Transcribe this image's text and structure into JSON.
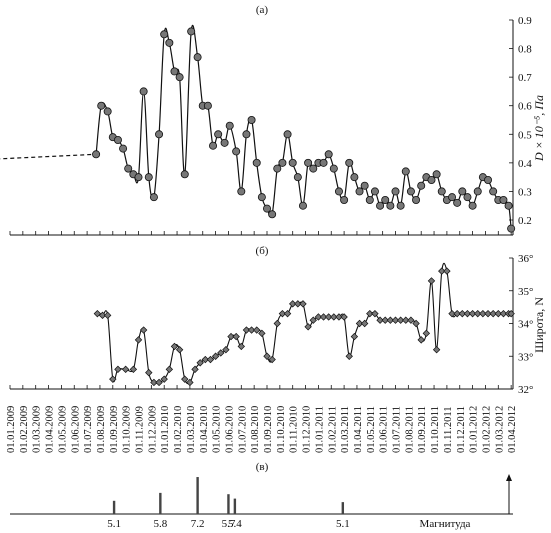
{
  "chart_data": [
    {
      "type": "line",
      "panel_label": "(а)",
      "ylabel": "D × 10⁻⁵, Па",
      "ylim": [
        0.15,
        0.9
      ],
      "yticks": [
        "0.2",
        "0.3",
        "0.4",
        "0.5",
        "0.6",
        "0.7",
        "0.8",
        "0.9"
      ],
      "dashed_lead_in": {
        "x": [
          -2.7,
          6.7
        ],
        "y": [
          0.41,
          0.43
        ]
      },
      "x_month_index": [
        6.7,
        7.1,
        7.6,
        8.0,
        8.4,
        8.8,
        9.2,
        9.6,
        10.0,
        10.4,
        10.8,
        11.2,
        11.6,
        12.0,
        12.4,
        12.8,
        13.2,
        13.6,
        14.1,
        14.6,
        15.0,
        15.4,
        15.8,
        16.2,
        16.7,
        17.1,
        17.6,
        18.0,
        18.4,
        18.8,
        19.2,
        19.6,
        20.0,
        20.4,
        20.8,
        21.2,
        21.6,
        22.0,
        22.4,
        22.8,
        23.2,
        23.6,
        24.0,
        24.4,
        24.8,
        25.2,
        25.6,
        26.0,
        26.4,
        26.8,
        27.2,
        27.6,
        28.0,
        28.4,
        28.8,
        29.2,
        29.6,
        30.0,
        30.4,
        30.8,
        31.2,
        31.6,
        32.0,
        32.4,
        32.8,
        33.2,
        33.6,
        34.0,
        34.4,
        34.8,
        35.2,
        35.6,
        36.0,
        36.4,
        36.8,
        37.2,
        37.6,
        38.0,
        38.4,
        38.8,
        39.0
      ],
      "y": [
        0.43,
        0.6,
        0.58,
        0.49,
        0.48,
        0.45,
        0.38,
        0.36,
        0.35,
        0.65,
        0.35,
        0.28,
        0.5,
        0.85,
        0.82,
        0.72,
        0.7,
        0.36,
        0.86,
        0.77,
        0.6,
        0.6,
        0.46,
        0.5,
        0.47,
        0.53,
        0.44,
        0.3,
        0.5,
        0.55,
        0.4,
        0.28,
        0.24,
        0.22,
        0.38,
        0.4,
        0.5,
        0.4,
        0.35,
        0.25,
        0.4,
        0.38,
        0.4,
        0.4,
        0.43,
        0.38,
        0.3,
        0.27,
        0.4,
        0.35,
        0.3,
        0.32,
        0.27,
        0.3,
        0.25,
        0.27,
        0.25,
        0.3,
        0.25,
        0.37,
        0.3,
        0.27,
        0.32,
        0.35,
        0.34,
        0.36,
        0.3,
        0.27,
        0.28,
        0.26,
        0.3,
        0.28,
        0.25,
        0.3,
        0.35,
        0.34,
        0.3,
        0.27,
        0.27,
        0.25,
        0.17
      ]
    },
    {
      "type": "line",
      "panel_label": "(б)",
      "ylabel": "Широта, N",
      "ylim": [
        32,
        36
      ],
      "yticks": [
        "32°",
        "33°",
        "34°",
        "35°",
        "36°"
      ],
      "x_month_index": [
        6.8,
        7.2,
        7.6,
        8.0,
        8.4,
        9.0,
        9.6,
        10.0,
        10.4,
        10.8,
        11.2,
        11.6,
        12.0,
        12.4,
        12.8,
        13.2,
        13.6,
        14.0,
        14.4,
        14.8,
        15.2,
        15.6,
        16.0,
        16.4,
        16.8,
        17.2,
        17.6,
        18.0,
        18.4,
        18.8,
        19.2,
        19.6,
        20.0,
        20.4,
        20.8,
        21.2,
        21.6,
        22.0,
        22.4,
        22.8,
        23.2,
        23.6,
        24.0,
        24.4,
        24.8,
        25.2,
        25.6,
        26.0,
        26.4,
        26.8,
        27.2,
        27.6,
        28.0,
        28.4,
        28.8,
        29.2,
        29.6,
        30.0,
        30.4,
        30.8,
        31.2,
        31.6,
        32.0,
        32.4,
        32.8,
        33.2,
        33.6,
        34.0,
        34.4,
        34.8,
        35.2,
        35.6,
        36.0,
        36.4,
        36.8,
        37.2,
        37.6,
        38.0,
        38.4,
        38.8,
        39.0
      ],
      "y": [
        34.3,
        34.25,
        34.25,
        32.3,
        32.6,
        32.6,
        32.6,
        33.5,
        33.8,
        32.5,
        32.2,
        32.2,
        32.3,
        32.6,
        33.3,
        33.2,
        32.3,
        32.2,
        32.6,
        32.8,
        32.9,
        32.9,
        33.0,
        33.1,
        33.2,
        33.6,
        33.6,
        33.3,
        33.8,
        33.8,
        33.8,
        33.7,
        33.0,
        32.9,
        34.0,
        34.3,
        34.3,
        34.6,
        34.6,
        34.6,
        33.9,
        34.1,
        34.2,
        34.2,
        34.2,
        34.2,
        34.2,
        34.2,
        33.0,
        33.6,
        34.0,
        34.0,
        34.3,
        34.3,
        34.1,
        34.1,
        34.1,
        34.1,
        34.1,
        34.1,
        34.1,
        34.0,
        33.5,
        33.7,
        35.3,
        33.2,
        35.6,
        35.6,
        34.3,
        34.3,
        34.3,
        34.3,
        34.3,
        34.3,
        34.3,
        34.3,
        34.3,
        34.3,
        34.3,
        34.3,
        34.3
      ]
    },
    {
      "type": "bar",
      "panel_label": "(в)",
      "xlabel": "Магнитуда",
      "bars": [
        {
          "x_month_index": 8.1,
          "height": 0.3,
          "label": "5.1"
        },
        {
          "x_month_index": 11.7,
          "height": 0.48,
          "label": "5.8"
        },
        {
          "x_month_index": 14.6,
          "height": 0.84,
          "label": "7.2"
        },
        {
          "x_month_index": 17.0,
          "height": 0.45,
          "label": "5.7"
        },
        {
          "x_month_index": 17.5,
          "height": 0.35,
          "label": "5.4"
        },
        {
          "x_month_index": 25.9,
          "height": 0.27,
          "label": "5.1"
        }
      ]
    }
  ],
  "date_labels": [
    "01.01.2009",
    "01.02.2009",
    "01.03.2009",
    "01.04.2009",
    "01.05.2009",
    "01.06.2009",
    "01.07.2009",
    "01.08.2009",
    "01.09.2009",
    "01.10.2009",
    "01.11.2009",
    "01.12.2009",
    "01.01.2010",
    "01.02.2010",
    "01.03.2010",
    "01.04.2010",
    "01.05.2010",
    "01.06.2010",
    "01.07.2010",
    "01.08.2010",
    "01.09.2010",
    "01.10.2010",
    "01.11.2010",
    "01.12.2010",
    "01.01.2011",
    "01.02.2011",
    "01.03.2011",
    "01.04.2011",
    "01.05.2011",
    "01.06.2011",
    "01.07.2011",
    "01.08.2011",
    "01.09.2011",
    "01.10.2011",
    "01.11.2011",
    "01.12.2011",
    "01.01.2012",
    "01.02.2012",
    "01.03.2012",
    "01.04.2012"
  ]
}
